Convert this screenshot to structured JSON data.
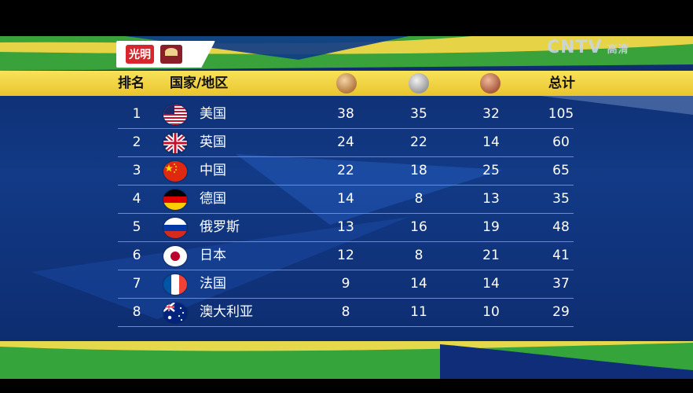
{
  "sponsor": {
    "brand": "光明"
  },
  "channel": {
    "name": "CNTV",
    "tag": "高清"
  },
  "header": {
    "rank": "排名",
    "country": "国家/地区",
    "gold_icon": "gold-medal-icon",
    "silver_icon": "silver-medal-icon",
    "bronze_icon": "bronze-medal-icon",
    "total": "总计"
  },
  "rows": [
    {
      "rank": "1",
      "country": "美国",
      "flag": "usa",
      "gold": "38",
      "silver": "35",
      "bronze": "32",
      "total": "105"
    },
    {
      "rank": "2",
      "country": "英国",
      "flag": "gbr",
      "gold": "24",
      "silver": "22",
      "bronze": "14",
      "total": "60"
    },
    {
      "rank": "3",
      "country": "中国",
      "flag": "chn",
      "gold": "22",
      "silver": "18",
      "bronze": "25",
      "total": "65"
    },
    {
      "rank": "4",
      "country": "德国",
      "flag": "ger",
      "gold": "14",
      "silver": "8",
      "bronze": "13",
      "total": "35"
    },
    {
      "rank": "5",
      "country": "俄罗斯",
      "flag": "rus",
      "gold": "13",
      "silver": "16",
      "bronze": "19",
      "total": "48"
    },
    {
      "rank": "6",
      "country": "日本",
      "flag": "jpn",
      "gold": "12",
      "silver": "8",
      "bronze": "21",
      "total": "41"
    },
    {
      "rank": "7",
      "country": "法国",
      "flag": "fra",
      "gold": "9",
      "silver": "14",
      "bronze": "14",
      "total": "37"
    },
    {
      "rank": "8",
      "country": "澳大利亚",
      "flag": "aus",
      "gold": "8",
      "silver": "11",
      "bronze": "10",
      "total": "29"
    }
  ],
  "colors": {
    "header": "#f3d443",
    "background": "#12347e",
    "accent_green": "#3fa63c",
    "accent_yellow": "#f1d743"
  }
}
